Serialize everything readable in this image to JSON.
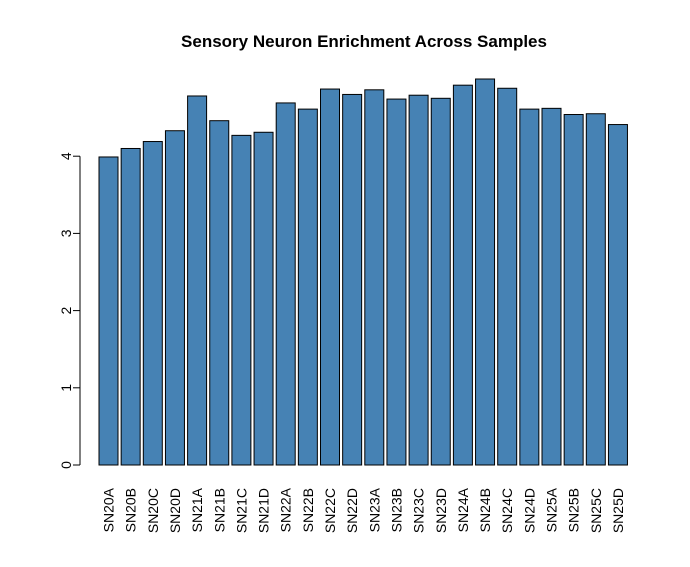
{
  "chart_data": {
    "type": "bar",
    "title": "Sensory Neuron Enrichment Across Samples",
    "xlabel": "",
    "ylabel": "",
    "categories": [
      "SN20A",
      "SN20B",
      "SN20C",
      "SN20D",
      "SN21A",
      "SN21B",
      "SN21C",
      "SN21D",
      "SN22A",
      "SN22B",
      "SN22C",
      "SN22D",
      "SN23A",
      "SN23B",
      "SN23C",
      "SN23D",
      "SN24A",
      "SN24B",
      "SN24C",
      "SN24D",
      "SN25A",
      "SN25B",
      "SN25C",
      "SN25D"
    ],
    "values": [
      3.99,
      4.1,
      4.19,
      4.33,
      4.78,
      4.46,
      4.27,
      4.31,
      4.69,
      4.61,
      4.87,
      4.8,
      4.86,
      4.74,
      4.79,
      4.75,
      4.92,
      5.0,
      4.88,
      4.61,
      4.62,
      4.54,
      4.55,
      4.41
    ],
    "yticks": [
      0,
      1,
      2,
      3,
      4
    ],
    "ylim": [
      0,
      5.0
    ],
    "bar_color": "#4682B4",
    "grid": false,
    "legend": false
  }
}
